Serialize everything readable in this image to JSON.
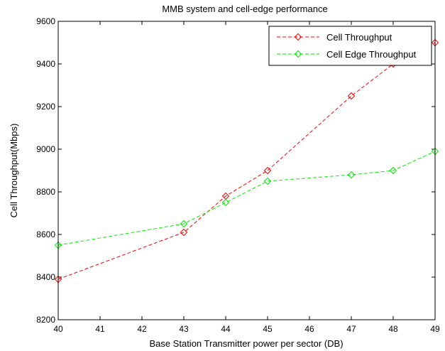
{
  "chart_data": {
    "type": "line",
    "title": "MMB system and cell-edge performance",
    "xlabel": "Base Station Transmitter power per sector (DB)",
    "ylabel": "Cell Throughput(Mbps)",
    "categories": [
      "40",
      "41",
      "42",
      "43",
      "44",
      "45",
      "46",
      "47",
      "48",
      "49"
    ],
    "ylim": [
      8200,
      9600
    ],
    "yticks": [
      8200,
      8400,
      8600,
      8800,
      9000,
      9200,
      9400,
      9600
    ],
    "grid": false,
    "legend_position": "top-right",
    "series": [
      {
        "name": "Cell Throughput",
        "color": "#ff0000",
        "line_style": "dashed",
        "marker": "diamond",
        "points": [
          [
            0,
            8390
          ],
          [
            3,
            8610
          ],
          [
            4,
            8780
          ],
          [
            5,
            8900
          ],
          [
            7,
            9250
          ],
          [
            8,
            9400
          ],
          [
            9,
            9500
          ]
        ]
      },
      {
        "name": "Cell Edge Throughput",
        "color": "#00ee00",
        "line_style": "dashed",
        "marker": "diamond",
        "points": [
          [
            0,
            8550
          ],
          [
            3,
            8650
          ],
          [
            4,
            8750
          ],
          [
            5,
            8850
          ],
          [
            7,
            8880
          ],
          [
            8,
            8900
          ],
          [
            9,
            8990
          ]
        ]
      }
    ]
  }
}
